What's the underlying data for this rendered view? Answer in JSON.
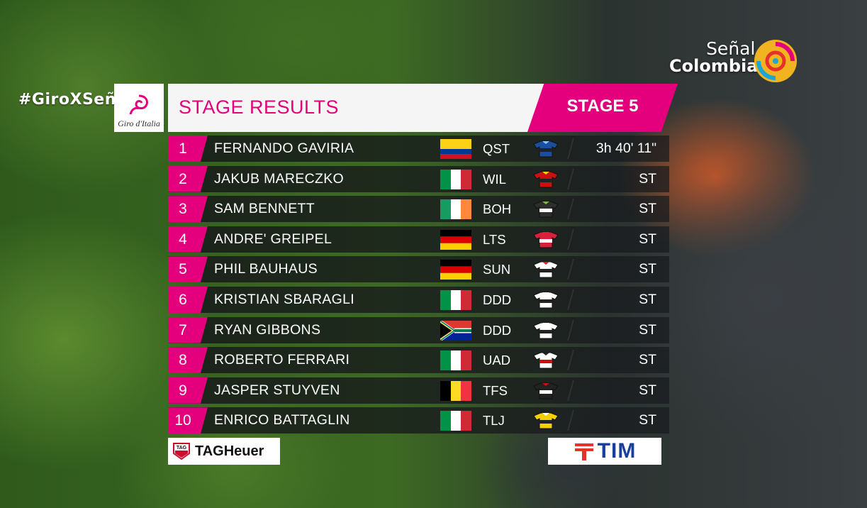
{
  "hashtag": "#GiroXSeñal",
  "giro_logo_text": "Giro d'Italia",
  "channel": {
    "line1": "Señal",
    "line2": "Colombia"
  },
  "header": {
    "title": "STAGE RESULTS",
    "stage": "STAGE 5"
  },
  "colors": {
    "accent": "#e4007c",
    "row_bg": "#1c1e21",
    "tim_blue": "#1a3e9c"
  },
  "results": [
    {
      "pos": "1",
      "name": "FERNANDO GAVIRIA",
      "flag": "colombia",
      "team": "QST",
      "jersey": "jersey-quickstep",
      "time": "3h 40' 11\""
    },
    {
      "pos": "2",
      "name": "JAKUB MARECZKO",
      "flag": "italy",
      "team": "WIL",
      "jersey": "jersey-wilier",
      "time": "ST"
    },
    {
      "pos": "3",
      "name": "SAM BENNETT",
      "flag": "ireland",
      "team": "BOH",
      "jersey": "jersey-bora",
      "time": "ST"
    },
    {
      "pos": "4",
      "name": "ANDRE' GREIPEL",
      "flag": "germany",
      "team": "LTS",
      "jersey": "jersey-lotto",
      "time": "ST"
    },
    {
      "pos": "5",
      "name": "PHIL BAUHAUS",
      "flag": "germany",
      "team": "SUN",
      "jersey": "jersey-sunweb",
      "time": "ST"
    },
    {
      "pos": "6",
      "name": "KRISTIAN SBARAGLI",
      "flag": "italy",
      "team": "DDD",
      "jersey": "jersey-dimension",
      "time": "ST"
    },
    {
      "pos": "7",
      "name": "RYAN GIBBONS",
      "flag": "south-africa",
      "team": "DDD",
      "jersey": "jersey-dimension",
      "time": "ST"
    },
    {
      "pos": "8",
      "name": "ROBERTO FERRARI",
      "flag": "italy",
      "team": "UAD",
      "jersey": "jersey-uae",
      "time": "ST"
    },
    {
      "pos": "9",
      "name": "JASPER STUYVEN",
      "flag": "belgium",
      "team": "TFS",
      "jersey": "jersey-trek",
      "time": "ST"
    },
    {
      "pos": "10",
      "name": "ENRICO BATTAGLIN",
      "flag": "italy",
      "team": "TLJ",
      "jersey": "jersey-lottojumbo",
      "time": "ST"
    }
  ],
  "sponsors": {
    "left": "TAGHeuer",
    "left_badge": "TAG",
    "right": "TIM"
  }
}
